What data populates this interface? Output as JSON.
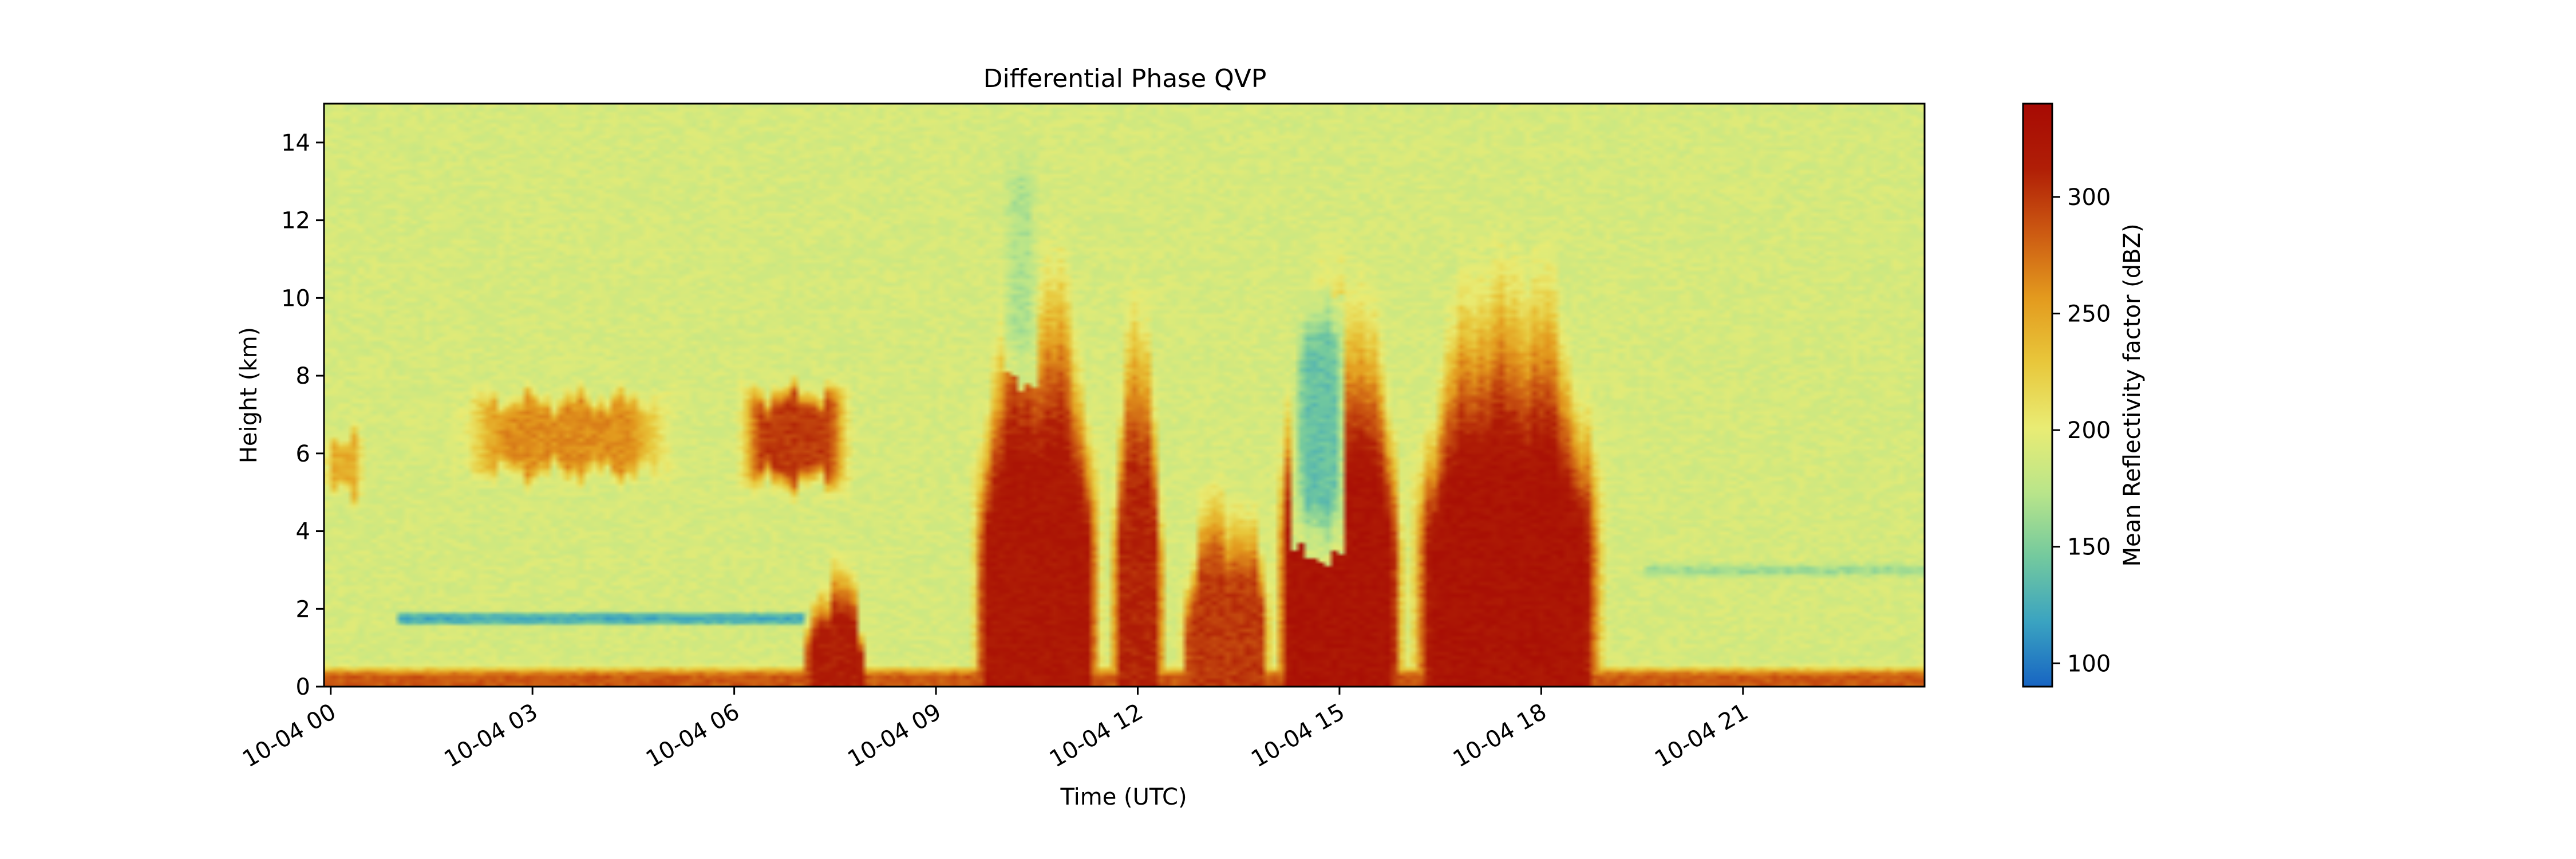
{
  "chart_data": {
    "type": "heatmap",
    "title": "Differential Phase QVP",
    "xlabel": "Time (UTC)",
    "ylabel": "Height (km)",
    "x_ticks": [
      "10-04 00",
      "10-04 03",
      "10-04 06",
      "10-04 09",
      "10-04 12",
      "10-04 15",
      "10-04 18",
      "10-04 21"
    ],
    "x_tick_hours": [
      0,
      3,
      6,
      9,
      12,
      15,
      18,
      21
    ],
    "xlim_hours": [
      -0.1,
      23.7
    ],
    "y_ticks": [
      0,
      2,
      4,
      6,
      8,
      10,
      12,
      14
    ],
    "ylim": [
      0,
      15
    ],
    "colorbar": {
      "label": "Mean Reflectivity factor (dBZ)",
      "ticks": [
        100,
        150,
        200,
        250,
        300
      ],
      "range": [
        90,
        340
      ],
      "colormap": "blue-cyan-green-yellow-orange-red",
      "stops": [
        "#1764c2",
        "#3aa3c1",
        "#73c99e",
        "#b9e58a",
        "#e9ec74",
        "#e8c73b",
        "#e39a1e",
        "#cc5a12",
        "#b01e06",
        "#a70a04"
      ]
    },
    "background_value": 190,
    "features": [
      {
        "kind": "surface-layer",
        "t_start": -0.1,
        "t_end": 23.7,
        "h_max": 0.5,
        "value": 285
      },
      {
        "kind": "melting-layer",
        "t_start": 1.0,
        "t_end": 7.5,
        "h_center": 1.75,
        "value": 118
      },
      {
        "kind": "melting-layer",
        "t_start": 19.5,
        "t_end": 23.7,
        "h_center": 3.0,
        "value": 162
      },
      {
        "kind": "cloud-layer",
        "t_start": -0.1,
        "t_end": 0.5,
        "h_min": 4.8,
        "h_max": 6.6,
        "value": 245
      },
      {
        "kind": "cloud-layer",
        "t_start": 1.8,
        "t_end": 5.2,
        "h_min": 5.3,
        "h_max": 7.6,
        "value": 262
      },
      {
        "kind": "cloud-layer",
        "t_start": 6.0,
        "t_end": 7.8,
        "h_min": 5.0,
        "h_max": 7.8,
        "value": 300
      },
      {
        "kind": "column",
        "t_start": 7.0,
        "t_end": 8.0,
        "h_max": 3.3,
        "value": 315
      },
      {
        "kind": "column",
        "t_start": 9.5,
        "t_end": 11.5,
        "h_max": 12.0,
        "value": 320
      },
      {
        "kind": "column",
        "t_start": 11.6,
        "t_end": 12.4,
        "h_max": 10.5,
        "value": 310
      },
      {
        "kind": "column",
        "t_start": 12.6,
        "t_end": 14.0,
        "h_max": 5.5,
        "value": 300
      },
      {
        "kind": "column",
        "t_start": 14.0,
        "t_end": 16.0,
        "h_max": 11.5,
        "value": 325
      },
      {
        "kind": "column",
        "t_start": 16.0,
        "t_end": 19.0,
        "h_max": 11.8,
        "value": 325
      },
      {
        "kind": "convective-anomaly",
        "t_start": 14.3,
        "t_end": 15.1,
        "h_min": 3.5,
        "h_max": 10.0,
        "value": 140
      },
      {
        "kind": "convective-anomaly",
        "t_start": 10.0,
        "t_end": 10.5,
        "h_min": 8.0,
        "h_max": 14.0,
        "value": 170
      }
    ]
  }
}
